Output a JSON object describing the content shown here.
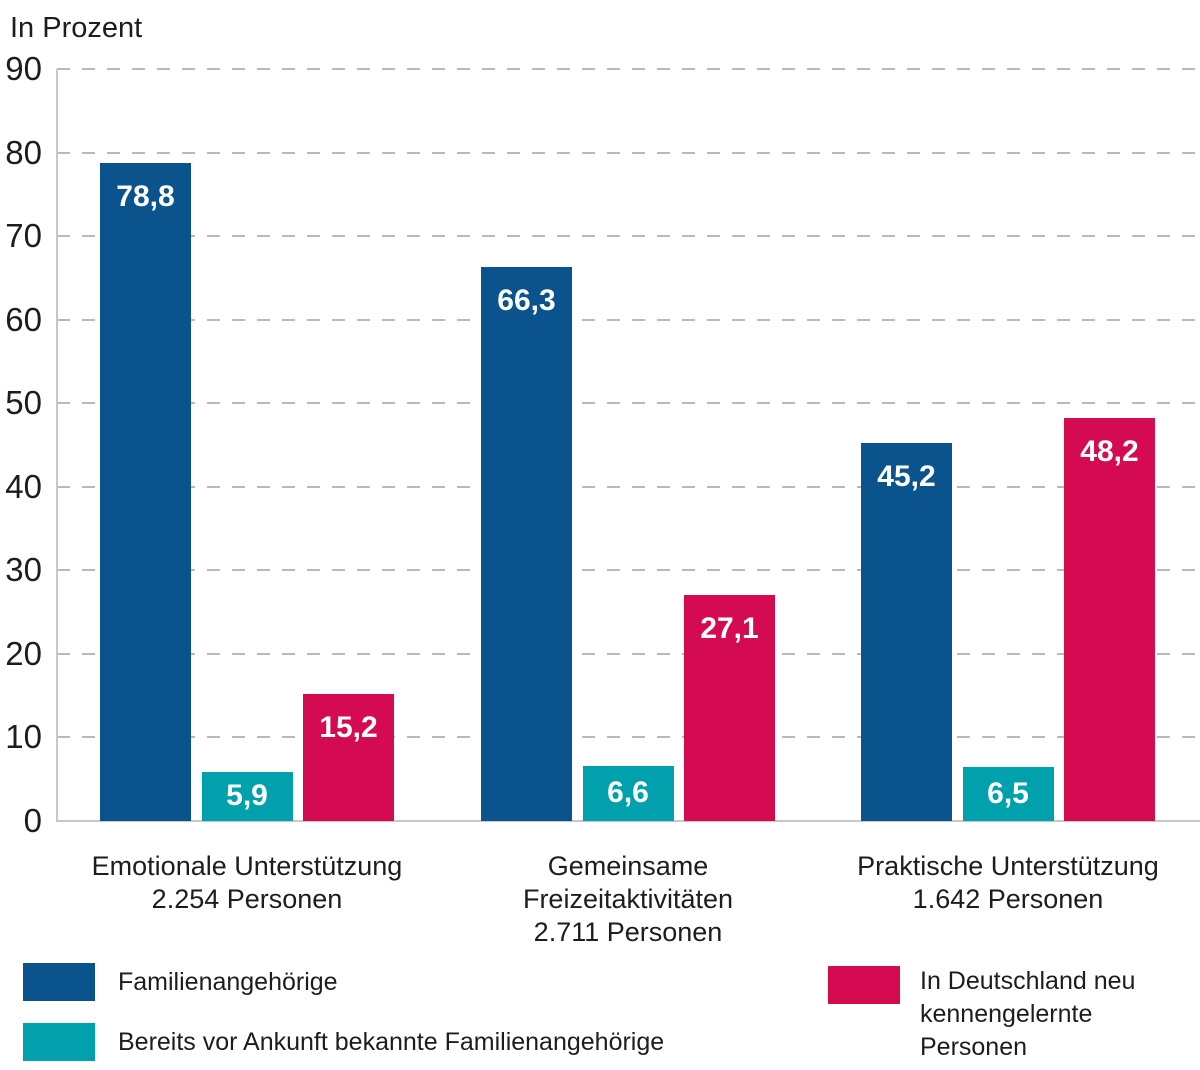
{
  "chart_data": {
    "type": "bar",
    "title": "In Prozent",
    "ylabel": "In Prozent",
    "xlabel": "",
    "ylim": [
      0,
      90
    ],
    "yticks": [
      0,
      10,
      20,
      30,
      40,
      50,
      60,
      70,
      80,
      90
    ],
    "grid": "horizontal-dashed",
    "legend_position": "bottom",
    "decimal_separator": ",",
    "categories": [
      "Emotionale Unterstützung 2.254 Personen",
      "Gemeinsame Freizeitaktivitäten 2.711 Personen",
      "Praktische Unterstützung 1.642 Personen"
    ],
    "category_label_lines": [
      [
        "Emotionale Unterstützung",
        "2.254 Personen"
      ],
      [
        "Gemeinsame",
        "Freizeitaktivitäten",
        "2.711 Personen"
      ],
      [
        "Praktische Unterstützung",
        "1.642 Personen"
      ]
    ],
    "series": [
      {
        "name": "Familienangehörige",
        "color": "#0B538C",
        "values": [
          78.8,
          66.3,
          45.2
        ],
        "value_labels": [
          "78,8",
          "66,3",
          "45,2"
        ]
      },
      {
        "name": "Bereits vor Ankunft bekannte Familienangehörige",
        "color": "#00A1AC",
        "values": [
          5.9,
          6.6,
          6.5
        ],
        "value_labels": [
          "5,9",
          "6,6",
          "6,5"
        ]
      },
      {
        "name": "In Deutschland neu kennengelernte Personen",
        "color": "#D50B52",
        "values": [
          15.2,
          27.1,
          48.2
        ],
        "value_labels": [
          "15,2",
          "27,1",
          "48,2"
        ]
      }
    ]
  },
  "colors": {
    "bar_blue": "#0B538C",
    "bar_teal": "#00A1AC",
    "bar_pink": "#D50B52",
    "gridline": "#b9b9b9",
    "axis_line": "#c8c8c8",
    "text": "#1d1d1b",
    "value_label_text": "#ffffff",
    "background": "#ffffff"
  }
}
